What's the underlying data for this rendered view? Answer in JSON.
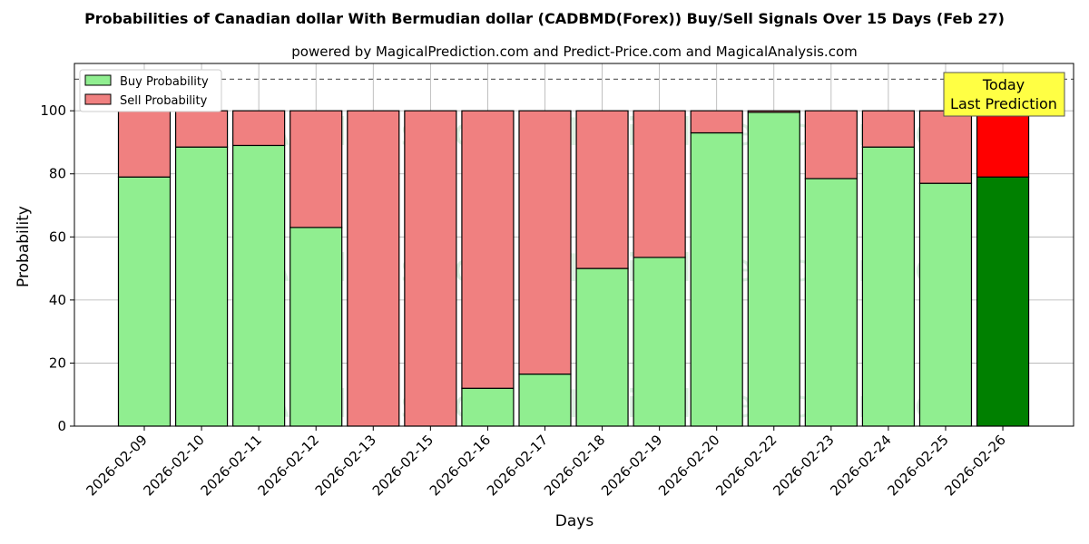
{
  "chart_data": {
    "type": "bar",
    "stacked": true,
    "title": "Probabilities of Canadian dollar With Bermudian dollar (CADBMD(Forex)) Buy/Sell Signals Over 15 Days (Feb 27)",
    "subtitle": "powered by MagicalPrediction.com and Predict-Price.com and MagicalAnalysis.com",
    "xlabel": "Days",
    "ylabel": "Probability",
    "ylim": [
      0,
      115
    ],
    "yticks": [
      0,
      20,
      40,
      60,
      80,
      100
    ],
    "reference_line": 110,
    "grid": true,
    "legend_position": "top-left",
    "categories": [
      "2026-02-09",
      "2026-02-10",
      "2026-02-11",
      "2026-02-12",
      "2026-02-13",
      "2026-02-15",
      "2026-02-16",
      "2026-02-17",
      "2026-02-18",
      "2026-02-19",
      "2026-02-20",
      "2026-02-22",
      "2026-02-23",
      "2026-02-24",
      "2026-02-25",
      "2026-02-26"
    ],
    "series": [
      {
        "name": "Buy Probability",
        "color": "#90ee90",
        "highlight_color": "#008000",
        "values": [
          79,
          88.5,
          89,
          63,
          0,
          0,
          12,
          16.5,
          50,
          53.5,
          93,
          99.5,
          78.5,
          88.5,
          77,
          79
        ]
      },
      {
        "name": "Sell Probability",
        "color": "#f08080",
        "highlight_color": "#ff0000",
        "values": [
          21,
          11.5,
          11,
          37,
          100,
          100,
          88,
          83.5,
          50,
          46.5,
          7,
          0.5,
          21.5,
          11.5,
          23,
          21
        ]
      }
    ],
    "highlight_index": 15,
    "annotation": {
      "line1": "Today",
      "line2": "Last Prediction",
      "background": "#ffff44"
    },
    "watermarks": [
      "MagicalAnalysis.com",
      "MagicalPrediction.com"
    ]
  }
}
